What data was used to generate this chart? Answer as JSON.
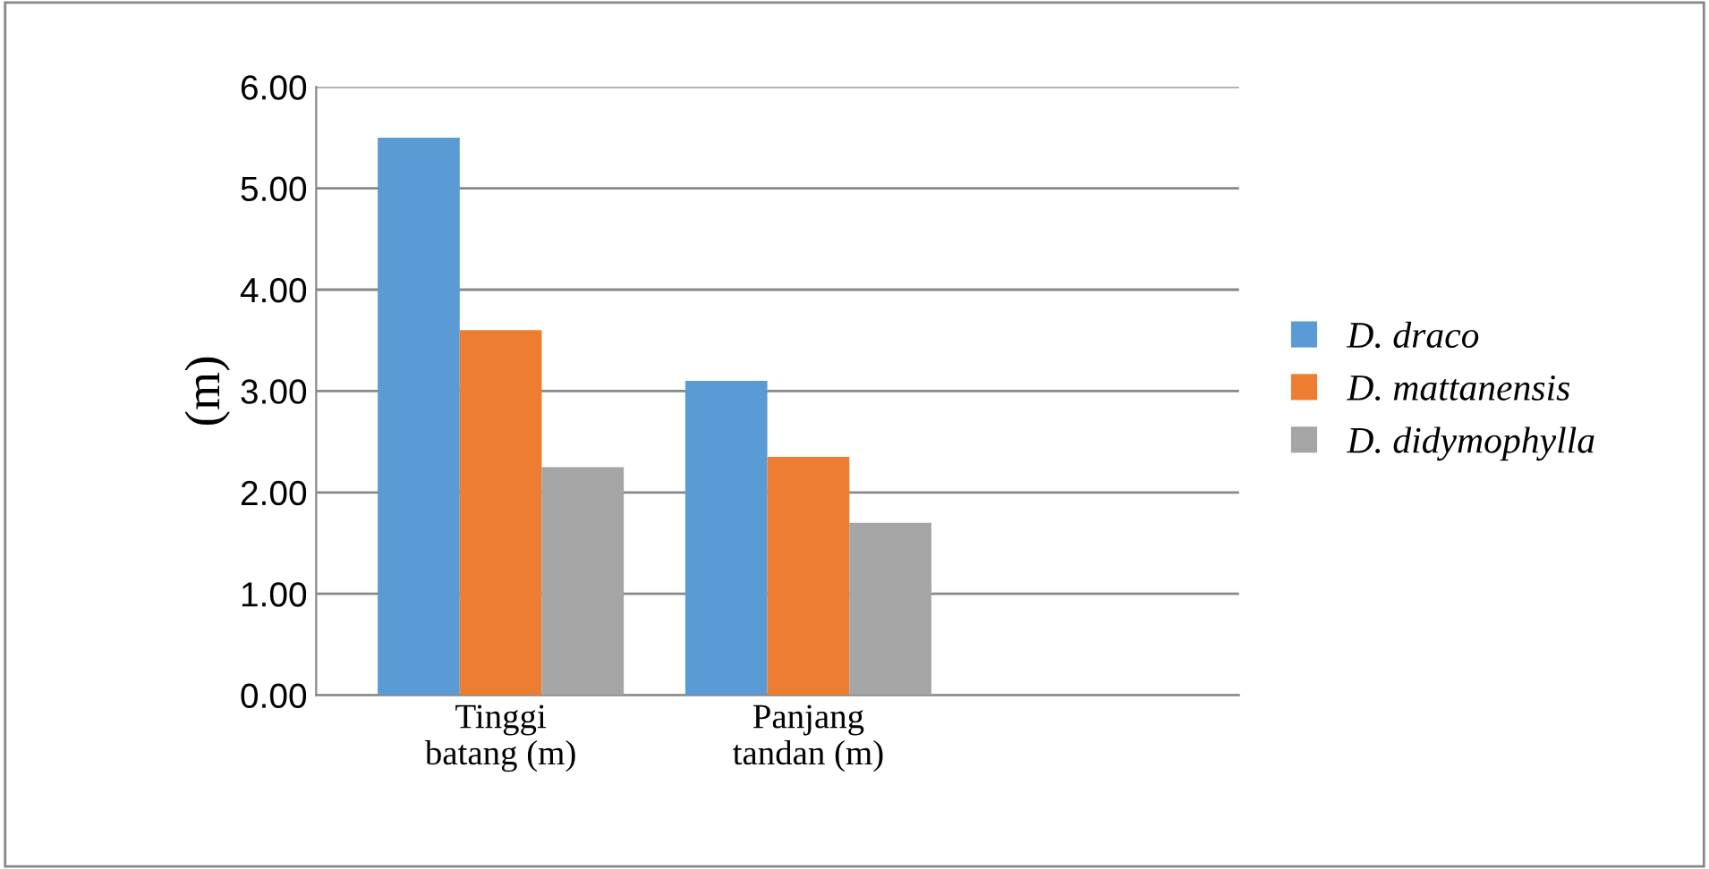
{
  "chart_data": {
    "type": "bar",
    "ylabel": "(m)",
    "categories": [
      "Tinggi\nbatang (m)",
      "Panjang\ntandan (m)"
    ],
    "series": [
      {
        "name": "D. draco",
        "color": "#5b9bd5",
        "values": [
          5.5,
          3.1
        ]
      },
      {
        "name": "D. mattanensis",
        "color": "#ed7d31",
        "values": [
          3.6,
          2.35
        ]
      },
      {
        "name": "D. didymophylla",
        "color": "#a5a5a5",
        "values": [
          2.25,
          1.7
        ]
      }
    ],
    "ylim": [
      0,
      6
    ],
    "yticks": [
      {
        "value": 0,
        "label": "0.00"
      },
      {
        "value": 1,
        "label": "1.00"
      },
      {
        "value": 2,
        "label": "2.00"
      },
      {
        "value": 3,
        "label": "3.00"
      },
      {
        "value": 4,
        "label": "4.00"
      },
      {
        "value": 5,
        "label": "5.00"
      },
      {
        "value": 6,
        "label": "6.00"
      }
    ],
    "grid": "y",
    "legend": "right"
  }
}
